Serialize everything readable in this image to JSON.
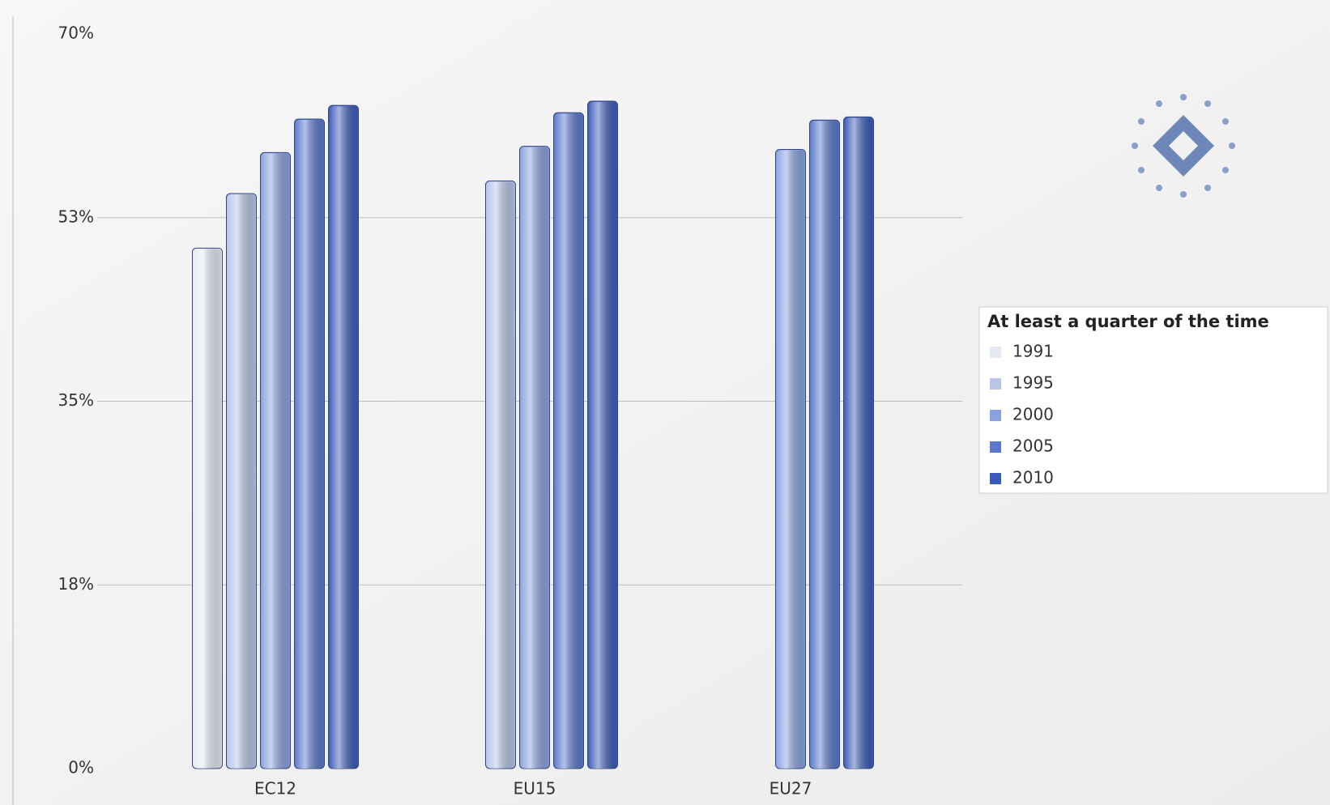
{
  "chart_data": {
    "type": "bar",
    "categories": [
      "EC12",
      "EU15",
      "EU27"
    ],
    "series": [
      {
        "name": "1991",
        "color": "#e6eaf5",
        "values": [
          49.6,
          null,
          null
        ]
      },
      {
        "name": "1995",
        "color": "#b7c5ea",
        "values": [
          54.8,
          56.0,
          null
        ]
      },
      {
        "name": "2000",
        "color": "#8aa2e0",
        "values": [
          58.7,
          59.3,
          59.0
        ]
      },
      {
        "name": "2005",
        "color": "#5a78cc",
        "values": [
          61.9,
          62.5,
          61.8
        ]
      },
      {
        "name": "2010",
        "color": "#3c5bb8",
        "values": [
          63.2,
          63.6,
          62.1
        ]
      }
    ],
    "legend_title": "At least a quarter of the time",
    "ylim": [
      0,
      70
    ],
    "yticks": [
      {
        "value": 0,
        "label": "0%"
      },
      {
        "value": 17.5,
        "label": "18%"
      },
      {
        "value": 35,
        "label": "35%"
      },
      {
        "value": 52.5,
        "label": "53%"
      },
      {
        "value": 70,
        "label": "70%"
      }
    ],
    "grid": true
  }
}
